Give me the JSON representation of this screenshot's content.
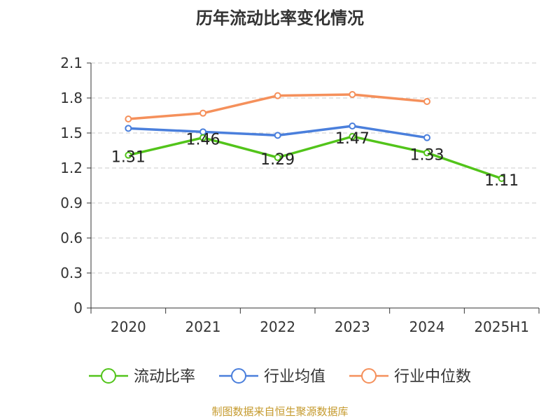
{
  "title": "历年流动比率变化情况",
  "source": "制图数据来自恒生聚源数据库",
  "chart_data": {
    "type": "line",
    "title": "历年流动比率变化情况",
    "categories": [
      "2020",
      "2021",
      "2022",
      "2023",
      "2024",
      "2025H1"
    ],
    "yticks": [
      "0",
      "0.3",
      "0.6",
      "0.9",
      "1.2",
      "1.5",
      "1.8",
      "2.1"
    ],
    "ylim": [
      0,
      2.1
    ],
    "grid": true,
    "legend_position": "bottom",
    "series": [
      {
        "name": "流动比率",
        "color": "#52c41a",
        "values": [
          1.31,
          1.46,
          1.29,
          1.47,
          1.33,
          1.11
        ],
        "labels": [
          "1.31",
          "1.46",
          "1.29",
          "1.47",
          "1.33",
          "1.11"
        ]
      },
      {
        "name": "行业均值",
        "color": "#4a7fdc",
        "values": [
          1.54,
          1.51,
          1.48,
          1.56,
          1.46,
          null
        ]
      },
      {
        "name": "行业中位数",
        "color": "#f5905b",
        "values": [
          1.62,
          1.67,
          1.82,
          1.83,
          1.77,
          null
        ]
      }
    ]
  }
}
